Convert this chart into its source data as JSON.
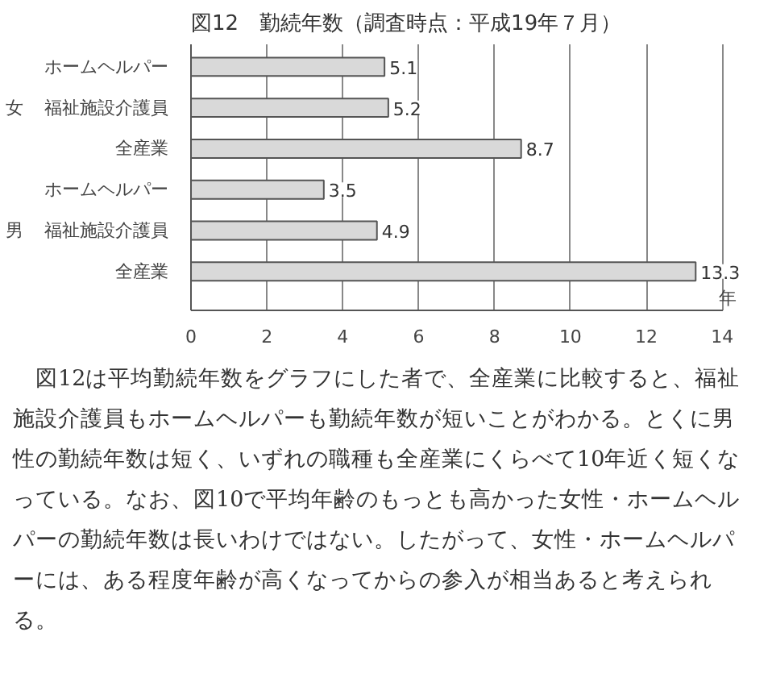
{
  "chart_data": {
    "type": "bar",
    "orientation": "horizontal",
    "title": "図12　勤続年数（調査時点：平成19年７月）",
    "categories": [
      "ホームヘルパー",
      "福祉施設介護員",
      "全産業",
      "ホームヘルパー",
      "福祉施設介護員",
      "全産業"
    ],
    "values": [
      5.1,
      5.2,
      8.7,
      3.5,
      4.9,
      13.3
    ],
    "color": "#d9d9d9",
    "xlim": [
      0,
      14
    ],
    "xticks": [
      0,
      2,
      4,
      6,
      8,
      10,
      12,
      14
    ],
    "xlabel": "年",
    "grid": "x",
    "data_labels": true,
    "annotations": [
      "女",
      "男",
      "　図12は平均勤続年数をグラフにした者で、全産業に比較すると、福祉施設介護員もホームヘルパーも勤続年数が短いことがわかる。とくに男性の勤続年数は短く、いずれの職種も全産業にくらべて10年近く短くなっている。なお、図10で平均年齢のもっとも高かった女性・ホームヘルパーの勤続年数は長いわけではない。したがって、女性・ホームヘルパーには、ある程度年齢が高くなってからの参入が相当あると考えられる。"
    ]
  }
}
